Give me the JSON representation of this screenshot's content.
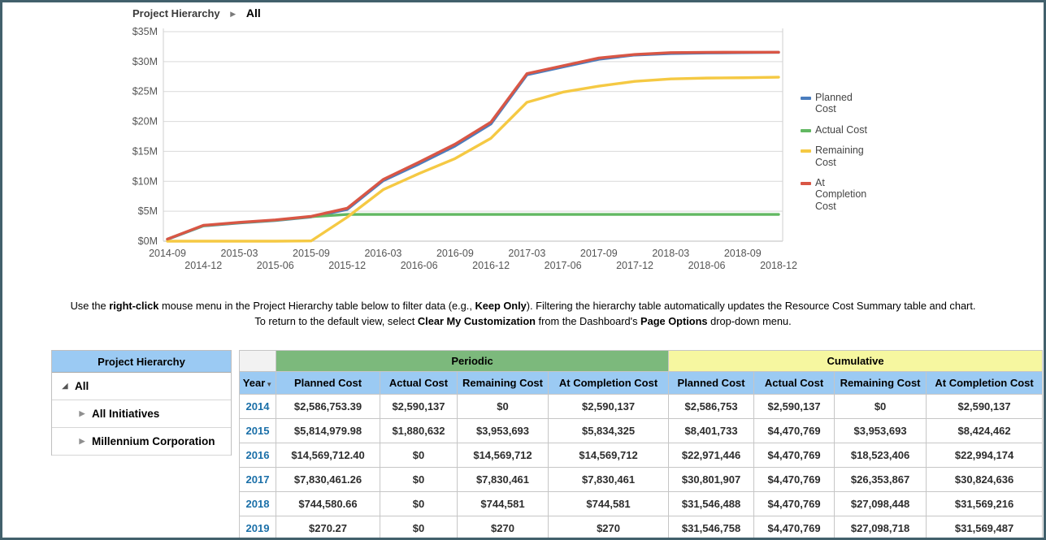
{
  "breadcrumb": {
    "parent": "Project Hierarchy",
    "arrow_icon": "▶",
    "current": "All"
  },
  "chart_data": {
    "type": "line",
    "title": "",
    "unit": "USD millions",
    "x": [
      "2014-09",
      "2014-12",
      "2015-03",
      "2015-06",
      "2015-09",
      "2015-12",
      "2016-03",
      "2016-06",
      "2016-09",
      "2016-12",
      "2017-03",
      "2017-06",
      "2017-09",
      "2017-12",
      "2018-03",
      "2018-06",
      "2018-09",
      "2018-12"
    ],
    "series": [
      {
        "name": "Planned Cost",
        "color": "#4A7DBE",
        "values": [
          0.3,
          2.55,
          3.05,
          3.45,
          4.05,
          5.3,
          10.1,
          12.9,
          15.9,
          19.6,
          27.8,
          29.1,
          30.4,
          31.1,
          31.35,
          31.45,
          31.5,
          31.55
        ]
      },
      {
        "name": "Actual Cost",
        "color": "#62B862",
        "values": [
          0.35,
          2.59,
          3.1,
          3.5,
          4.1,
          4.47,
          4.47,
          4.47,
          4.47,
          4.47,
          4.47,
          4.47,
          4.47,
          4.47,
          4.47,
          4.47,
          4.47,
          4.47
        ]
      },
      {
        "name": "Remaining Cost",
        "color": "#F5C943",
        "values": [
          0,
          0,
          0,
          0,
          0.05,
          4.0,
          8.6,
          11.3,
          13.8,
          17.2,
          23.2,
          24.9,
          25.9,
          26.7,
          27.1,
          27.25,
          27.3,
          27.4
        ]
      },
      {
        "name": "At Completion Cost",
        "color": "#D95645",
        "values": [
          0.35,
          2.65,
          3.15,
          3.55,
          4.15,
          5.5,
          10.3,
          13.2,
          16.2,
          19.9,
          28.0,
          29.3,
          30.6,
          31.2,
          31.5,
          31.55,
          31.57,
          31.57
        ]
      }
    ],
    "ylim": [
      0,
      35
    ],
    "y_tick_step": 5,
    "y_tick_labels": [
      "$0M",
      "$5M",
      "$10M",
      "$15M",
      "$20M",
      "$25M",
      "$30M",
      "$35M"
    ],
    "grid": true,
    "legend_position": "right"
  },
  "instructions": {
    "line1_segments": [
      {
        "text": "Use the "
      },
      {
        "text": "right-click",
        "bold": true
      },
      {
        "text": " mouse menu in the Project Hierarchy table below to filter data (e.g., "
      },
      {
        "text": "Keep Only",
        "bold": true
      },
      {
        "text": "). Filtering the hierarchy table automatically updates the Resource Cost Summary table and chart."
      }
    ],
    "line2_segments": [
      {
        "text": "To return to the default view, select "
      },
      {
        "text": "Clear My Customization",
        "bold": true
      },
      {
        "text": " from the Dashboard's "
      },
      {
        "text": "Page Options",
        "bold": true
      },
      {
        "text": " drop-down menu."
      }
    ]
  },
  "hierarchy_panel": {
    "title": "Project Hierarchy",
    "items": [
      {
        "label": "All",
        "level": 0,
        "state": "expanded"
      },
      {
        "label": "All Initiatives",
        "level": 1,
        "state": "collapsed"
      },
      {
        "label": "Millennium Corporation",
        "level": 1,
        "state": "collapsed"
      }
    ]
  },
  "cost_table": {
    "year_header": "Year",
    "sort_icon": "▼",
    "group_headers": {
      "periodic": "Periodic",
      "cumulative": "Cumulative"
    },
    "sub_headers": [
      "Planned Cost",
      "Actual Cost",
      "Remaining Cost",
      "At Completion Cost"
    ],
    "rows": [
      {
        "year": "2014",
        "periodic": [
          "$2,586,753.39",
          "$2,590,137",
          "$0",
          "$2,590,137"
        ],
        "cumulative": [
          "$2,586,753",
          "$2,590,137",
          "$0",
          "$2,590,137"
        ]
      },
      {
        "year": "2015",
        "periodic": [
          "$5,814,979.98",
          "$1,880,632",
          "$3,953,693",
          "$5,834,325"
        ],
        "cumulative": [
          "$8,401,733",
          "$4,470,769",
          "$3,953,693",
          "$8,424,462"
        ]
      },
      {
        "year": "2016",
        "periodic": [
          "$14,569,712.40",
          "$0",
          "$14,569,712",
          "$14,569,712"
        ],
        "cumulative": [
          "$22,971,446",
          "$4,470,769",
          "$18,523,406",
          "$22,994,174"
        ]
      },
      {
        "year": "2017",
        "periodic": [
          "$7,830,461.26",
          "$0",
          "$7,830,461",
          "$7,830,461"
        ],
        "cumulative": [
          "$30,801,907",
          "$4,470,769",
          "$26,353,867",
          "$30,824,636"
        ]
      },
      {
        "year": "2018",
        "periodic": [
          "$744,580.66",
          "$0",
          "$744,581",
          "$744,581"
        ],
        "cumulative": [
          "$31,546,488",
          "$4,470,769",
          "$27,098,448",
          "$31,569,216"
        ]
      },
      {
        "year": "2019",
        "periodic": [
          "$270.27",
          "$0",
          "$270",
          "$270"
        ],
        "cumulative": [
          "$31,546,758",
          "$4,470,769",
          "$27,098,718",
          "$31,569,487"
        ]
      }
    ]
  },
  "colors": {
    "outer_border": "#42606C",
    "header_blue": "#9BCAF3",
    "periodic_green": "#7CB97C",
    "cumulative_yellow": "#F6F7A0",
    "year_link_blue": "#1A6FA8",
    "gridline": "#d9d9d9"
  }
}
